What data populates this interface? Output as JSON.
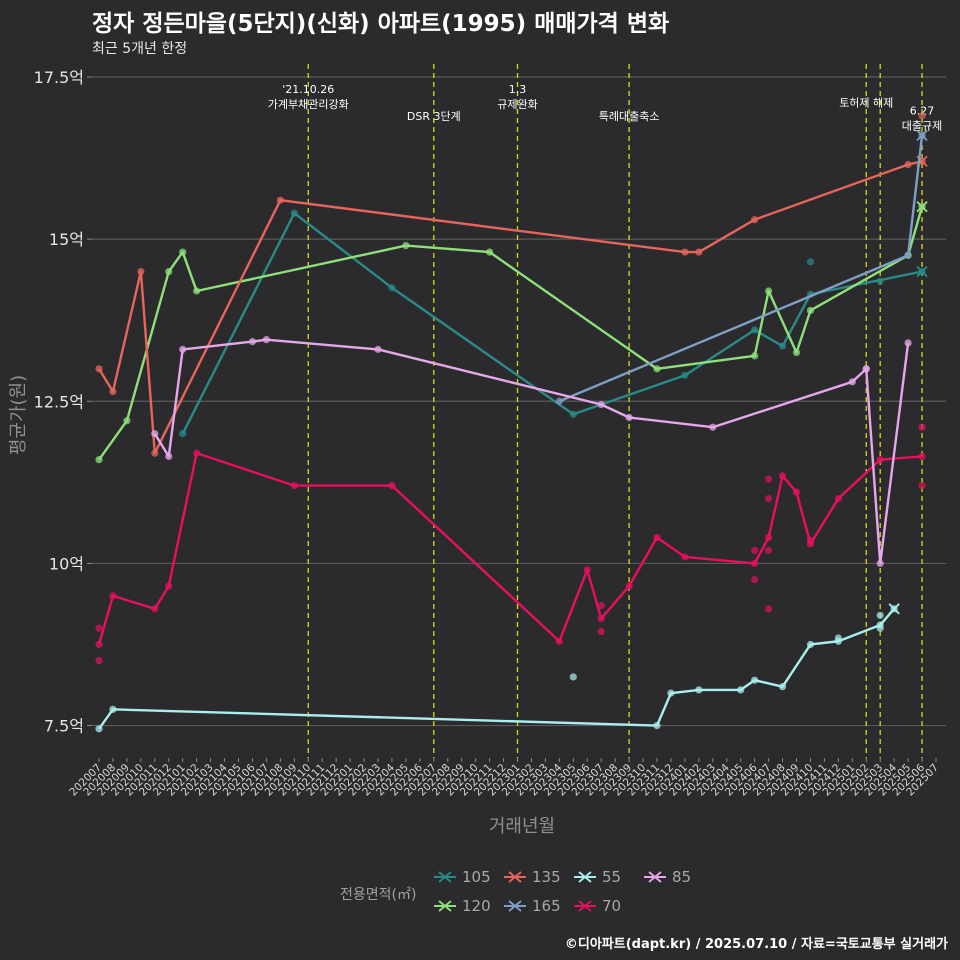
{
  "title": "정자 정든마을(5단지)(신화) 아파트(1995) 매매가격 변화",
  "subtitle": "최근 5개년 한정",
  "credit": "©디아파트(dapt.kr) / 2025.07.10 / 자료=국토교통부 실거래가",
  "chart_data": {
    "type": "line",
    "xlabel": "거래년월",
    "ylabel": "평균가(원)",
    "ylim": [
      7.0,
      17.7
    ],
    "yticks": [
      {
        "value": 7.5,
        "label": "7.5억"
      },
      {
        "value": 10,
        "label": "10억"
      },
      {
        "value": 12.5,
        "label": "12.5억"
      },
      {
        "value": 15,
        "label": "15억"
      },
      {
        "value": 17.5,
        "label": "17.5억"
      }
    ],
    "x_categories": [
      "202007",
      "202008",
      "202009",
      "202010",
      "202011",
      "202012",
      "202101",
      "202102",
      "202103",
      "202104",
      "202105",
      "202106",
      "202107",
      "202108",
      "202109",
      "202110",
      "202111",
      "202112",
      "202201",
      "202202",
      "202203",
      "202204",
      "202205",
      "202206",
      "202207",
      "202208",
      "202209",
      "202210",
      "202211",
      "202212",
      "202301",
      "202302",
      "202303",
      "202304",
      "202305",
      "202306",
      "202307",
      "202308",
      "202309",
      "202310",
      "202311",
      "202312",
      "202401",
      "202402",
      "202403",
      "202404",
      "202405",
      "202406",
      "202407",
      "202408",
      "202409",
      "202410",
      "202411",
      "202412",
      "202501",
      "202502",
      "202503",
      "202504",
      "202505",
      "202506",
      "202507"
    ],
    "events": [
      {
        "x": "202110",
        "lines": [
          "'21.10.26",
          "가계부채관리강화"
        ],
        "level": 0
      },
      {
        "x": "202207",
        "lines": [
          "DSR 3단계"
        ],
        "level": 2
      },
      {
        "x": "202301",
        "lines": [
          "1.3",
          "규제완화"
        ],
        "level": 0
      },
      {
        "x": "202309",
        "lines": [
          "특례대출축소"
        ],
        "level": 2
      },
      {
        "x": "202502",
        "lines": [
          "토허제 해제"
        ],
        "level": 1
      },
      {
        "x": "202503",
        "lines": [],
        "level": 1
      },
      {
        "x": "202506",
        "lines": [
          "6.27",
          "대출규제"
        ],
        "level": 1.6
      }
    ],
    "legend_title": "전용면적(㎡)",
    "series": [
      {
        "name": "105",
        "color": "#2a8a87",
        "line": [
          [
            "202101",
            12.0
          ],
          [
            "202109",
            15.4
          ],
          [
            "202204",
            14.25
          ],
          [
            "202305",
            12.3
          ],
          [
            "202401",
            12.9
          ],
          [
            "202406",
            13.6
          ],
          [
            "202408",
            13.35
          ],
          [
            "202410",
            14.15
          ],
          [
            "202506",
            14.5
          ]
        ],
        "points": [
          [
            "202410",
            14.65
          ],
          [
            "202503",
            14.35
          ]
        ],
        "last": [
          "202506",
          14.5
        ]
      },
      {
        "name": "120",
        "color": "#8ee07a",
        "line": [
          [
            "202007",
            11.6
          ],
          [
            "202009",
            12.2
          ],
          [
            "202012",
            14.5
          ],
          [
            "202101",
            14.8
          ],
          [
            "202102",
            14.2
          ],
          [
            "202205",
            14.9
          ],
          [
            "202211",
            14.8
          ],
          [
            "202311",
            13.0
          ],
          [
            "202406",
            13.2
          ],
          [
            "202407",
            14.2
          ],
          [
            "202409",
            13.25
          ],
          [
            "202410",
            13.9
          ],
          [
            "202505",
            14.75
          ],
          [
            "202506",
            15.5
          ]
        ],
        "points": [],
        "last": [
          "202506",
          15.5
        ]
      },
      {
        "name": "135",
        "color": "#e8655c",
        "line": [
          [
            "202007",
            13.0
          ],
          [
            "202008",
            12.65
          ],
          [
            "202010",
            14.5
          ],
          [
            "202011",
            11.7
          ],
          [
            "202108",
            15.6
          ],
          [
            "202401",
            14.8
          ],
          [
            "202402",
            14.8
          ],
          [
            "202406",
            15.3
          ],
          [
            "202505",
            16.15
          ],
          [
            "202506",
            16.2
          ]
        ],
        "points": [
          [
            "202506",
            16.9
          ]
        ],
        "last": [
          "202506",
          16.2
        ]
      },
      {
        "name": "165",
        "color": "#7f9fc6",
        "line": [
          [
            "202304",
            12.5
          ],
          [
            "202505",
            14.75
          ],
          [
            "202506",
            16.6
          ]
        ],
        "points": [],
        "last": [
          "202506",
          16.6
        ]
      },
      {
        "name": "55",
        "color": "#aaeeee",
        "line": [
          [
            "202007",
            7.45
          ],
          [
            "202008",
            7.75
          ],
          [
            "202311",
            7.5
          ],
          [
            "202312",
            8.0
          ],
          [
            "202402",
            8.05
          ],
          [
            "202405",
            8.05
          ],
          [
            "202406",
            8.2
          ],
          [
            "202408",
            8.1
          ],
          [
            "202410",
            8.75
          ],
          [
            "202412",
            8.8
          ],
          [
            "202503",
            9.05
          ],
          [
            "202504",
            9.3
          ]
        ],
        "points": [
          [
            "202305",
            8.25
          ],
          [
            "202412",
            8.85
          ],
          [
            "202503",
            9.0
          ],
          [
            "202503",
            9.2
          ]
        ],
        "last": [
          "202504",
          9.3
        ]
      },
      {
        "name": "70",
        "color": "#e8105c",
        "line": [
          [
            "202007",
            8.75
          ],
          [
            "202008",
            9.5
          ],
          [
            "202011",
            9.3
          ],
          [
            "202012",
            9.65
          ],
          [
            "202102",
            11.7
          ],
          [
            "202109",
            11.2
          ],
          [
            "202204",
            11.2
          ],
          [
            "202304",
            8.8
          ],
          [
            "202306",
            9.9
          ],
          [
            "202307",
            9.15
          ],
          [
            "202309",
            9.65
          ],
          [
            "202311",
            10.4
          ],
          [
            "202401",
            10.1
          ],
          [
            "202406",
            10.0
          ],
          [
            "202407",
            10.4
          ],
          [
            "202408",
            11.35
          ],
          [
            "202409",
            11.1
          ],
          [
            "202410",
            10.3
          ],
          [
            "202412",
            11.0
          ],
          [
            "202503",
            11.6
          ],
          [
            "202506",
            11.65
          ]
        ],
        "points": [
          [
            "202007",
            9.0
          ],
          [
            "202007",
            8.5
          ],
          [
            "202406",
            9.75
          ],
          [
            "202406",
            10.2
          ],
          [
            "202407",
            10.2
          ],
          [
            "202407",
            11.0
          ],
          [
            "202407",
            11.3
          ],
          [
            "202407",
            9.3
          ],
          [
            "202307",
            9.35
          ],
          [
            "202307",
            8.95
          ],
          [
            "202410",
            10.35
          ],
          [
            "202506",
            12.1
          ],
          [
            "202506",
            11.2
          ]
        ],
        "last": null
      },
      {
        "name": "85",
        "color": "#e6a8ea",
        "line": [
          [
            "202011",
            12.0
          ],
          [
            "202012",
            11.65
          ],
          [
            "202101",
            13.3
          ],
          [
            "202106",
            13.42
          ],
          [
            "202107",
            13.45
          ],
          [
            "202203",
            13.3
          ],
          [
            "202307",
            12.45
          ],
          [
            "202309",
            12.25
          ],
          [
            "202403",
            12.1
          ],
          [
            "202501",
            12.8
          ],
          [
            "202502",
            13.0
          ],
          [
            "202503",
            10.0
          ],
          [
            "202505",
            13.4
          ]
        ],
        "points": [
          [
            "202502",
            13.0
          ]
        ],
        "last": null
      }
    ]
  }
}
